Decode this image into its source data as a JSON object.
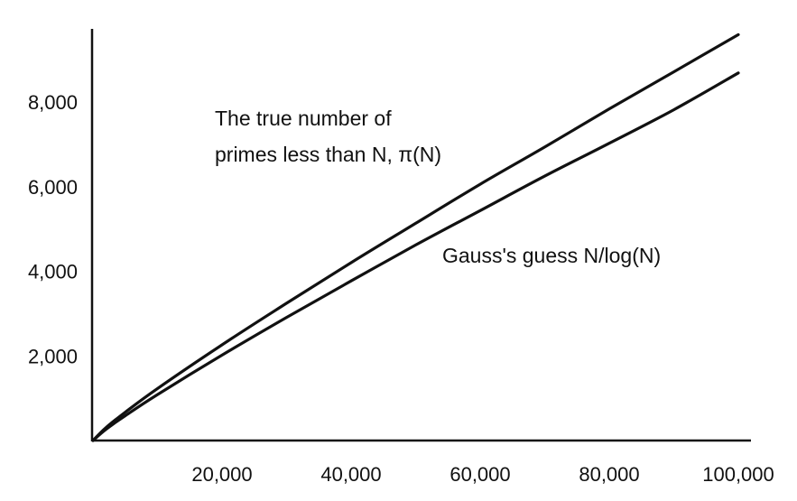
{
  "chart_data": {
    "type": "line",
    "title": "",
    "xlabel": "",
    "ylabel": "",
    "xlim": [
      0,
      100000
    ],
    "ylim": [
      0,
      9600
    ],
    "x_ticks": [
      {
        "value": 20000,
        "label": "20,000"
      },
      {
        "value": 40000,
        "label": "40,000"
      },
      {
        "value": 60000,
        "label": "60,000"
      },
      {
        "value": 80000,
        "label": "80,000"
      },
      {
        "value": 100000,
        "label": "100,000"
      }
    ],
    "y_ticks": [
      {
        "value": 2000,
        "label": "2,000"
      },
      {
        "value": 4000,
        "label": "4,000"
      },
      {
        "value": 6000,
        "label": "6,000"
      },
      {
        "value": 8000,
        "label": "8,000"
      }
    ],
    "grid": false,
    "legend": "none",
    "series": [
      {
        "x": [
          0,
          2000,
          5000,
          10000,
          20000,
          30000,
          40000,
          50000,
          60000,
          70000,
          80000,
          90000,
          100000
        ],
        "values": [
          0,
          303,
          669,
          1229,
          2262,
          3245,
          4203,
          5133,
          6057,
          6935,
          7837,
          8713,
          9592
        ]
      },
      {
        "x": [
          0,
          2000,
          5000,
          10000,
          20000,
          30000,
          40000,
          50000,
          60000,
          70000,
          80000,
          90000,
          100000
        ],
        "values": [
          0,
          263,
          587,
          1086,
          2019,
          2910,
          3771,
          4621,
          5434,
          6249,
          7025,
          7817,
          8686
        ]
      }
    ],
    "annotations": [
      {
        "id": "true",
        "lines": [
          "The true number of",
          "primes less than N, π(N)"
        ]
      },
      {
        "id": "gauss",
        "lines": [
          "Gauss's guess N/log(N)"
        ]
      }
    ]
  }
}
